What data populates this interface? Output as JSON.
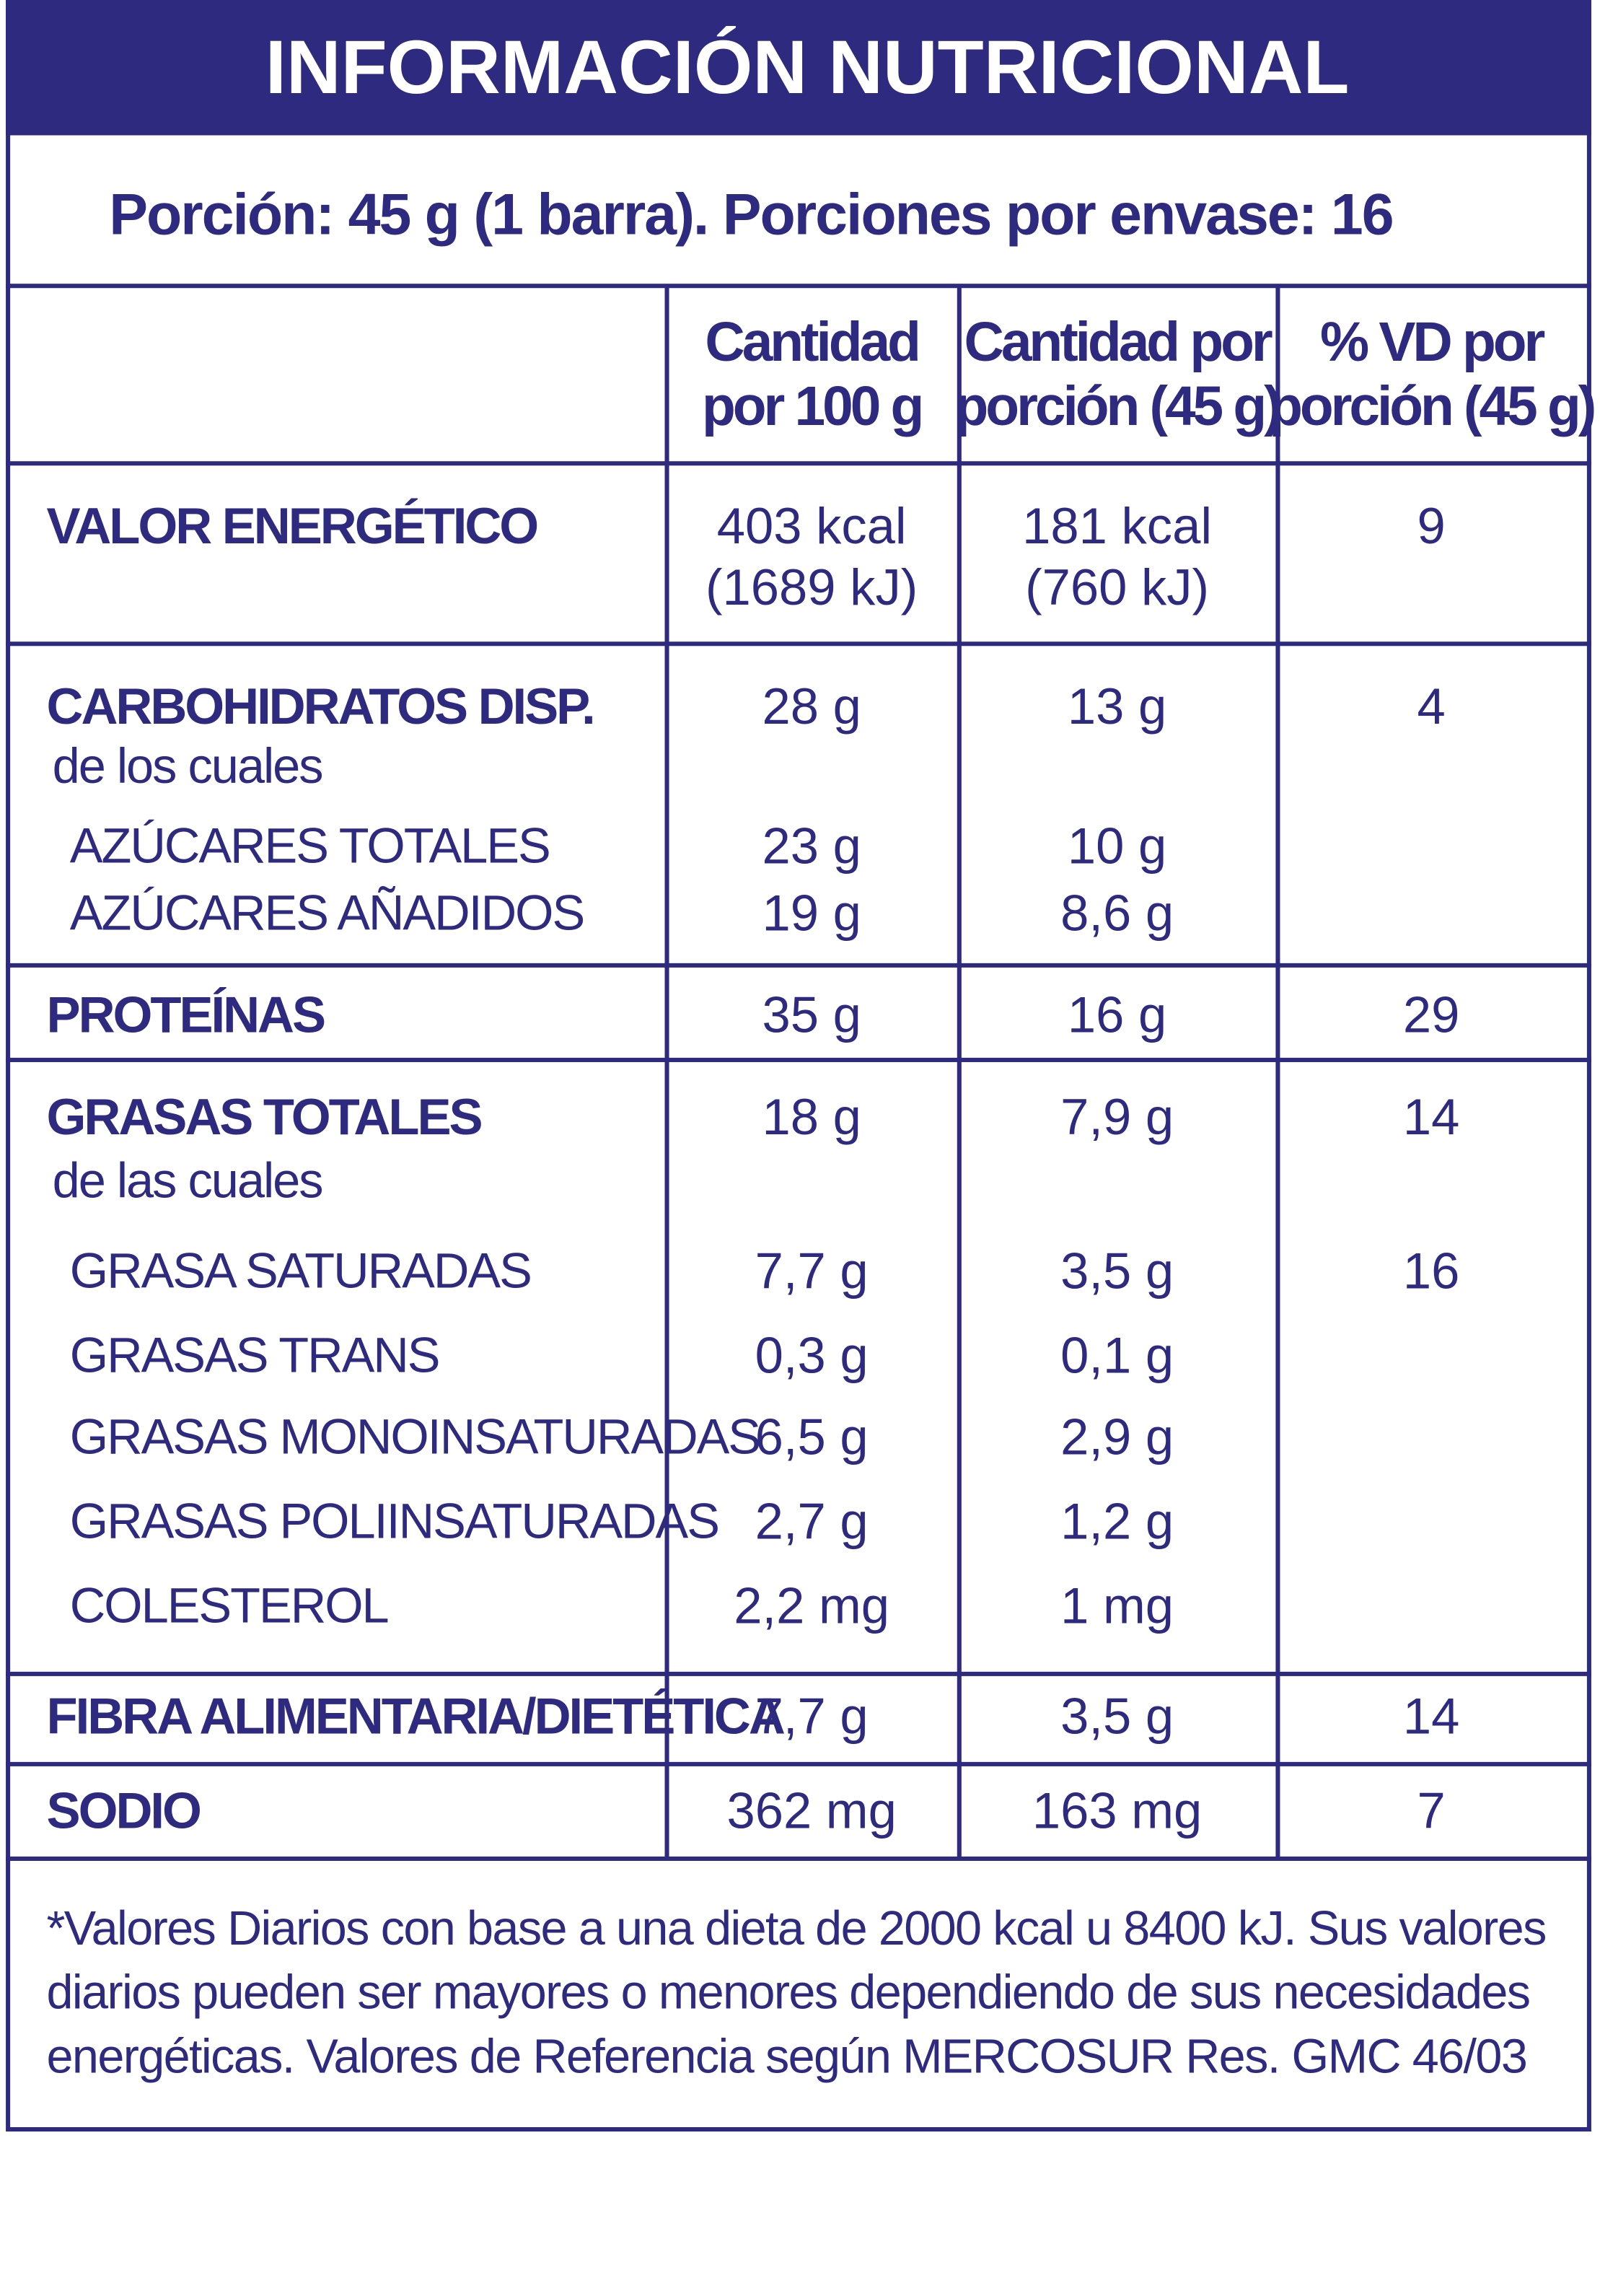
{
  "title": "INFORMACIÓN NUTRICIONAL",
  "serving": "Porción: 45 g (1 barra). Porciones por envase: 16",
  "headers": [
    [
      "Cantidad",
      "por 100 g"
    ],
    [
      "Cantidad por",
      "porción (45 g)"
    ],
    [
      "% VD por",
      "porción (45 g)"
    ]
  ],
  "sections": [
    {
      "lines": [
        {
          "label": "VALOR ENERGÉTICO",
          "per100": "403 kcal",
          "portion": "181 kcal",
          "vd": 9
        },
        {
          "per100": "(1689 kJ)",
          "portion": "(760 kJ)"
        }
      ]
    },
    {
      "lines": [
        {
          "label": "CARBOHIDRATOS DISP.",
          "per100": "28 g",
          "portion": "13 g",
          "vd": 4
        },
        {
          "label": "de los cuales"
        },
        {
          "label": "AZÚCARES TOTALES",
          "per100": "23 g",
          "portion": "10 g"
        },
        {
          "label": "AZÚCARES AÑADIDOS",
          "per100": "19 g",
          "portion": "8,6 g"
        }
      ]
    },
    {
      "lines": [
        {
          "label": "PROTEÍNAS",
          "per100": "35 g",
          "portion": "16 g",
          "vd": 29
        }
      ]
    },
    {
      "lines": [
        {
          "label": "GRASAS TOTALES",
          "per100": "18 g",
          "portion": "7,9 g",
          "vd": 14
        },
        {
          "label": "de las cuales"
        },
        {
          "label": "GRASA SATURADAS",
          "per100": "7,7 g",
          "portion": "3,5 g",
          "vd": 16
        },
        {
          "label": "GRASAS TRANS",
          "per100": "0,3 g",
          "portion": "0,1 g"
        },
        {
          "label": "GRASAS MONOINSATURADAS",
          "per100": "6,5 g",
          "portion": "2,9 g"
        },
        {
          "label": "GRASAS POLIINSATURADAS",
          "per100": "2,7 g",
          "portion": "1,2 g"
        },
        {
          "label": "COLESTEROL",
          "per100": "2,2 mg",
          "portion": "1 mg"
        }
      ]
    },
    {
      "lines": [
        {
          "label": "FIBRA ALIMENTARIA/DIETÉTICA",
          "per100": "7,7 g",
          "portion": "3,5 g",
          "vd": 14
        }
      ]
    },
    {
      "lines": [
        {
          "label": "SODIO",
          "per100": "362 mg",
          "portion": "163 mg",
          "vd": 7
        }
      ]
    }
  ],
  "footer": [
    "*Valores Diarios con base a una dieta de 2000 kcal u 8400 kJ. Sus valores",
    "diarios pueden ser mayores o menores dependiendo de sus necesidades",
    "energéticas. Valores de Referencia según MERCOSUR Res. GMC 46/03"
  ]
}
